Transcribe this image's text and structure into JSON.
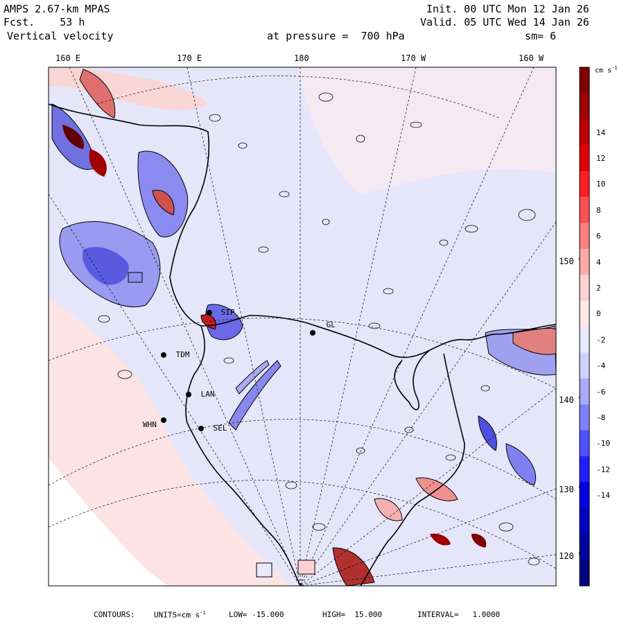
{
  "header": {
    "model": "AMPS 2.67-km MPAS",
    "forecast": "Fcst.    53 h",
    "field": "Vertical velocity",
    "init": "Init. 00 UTC Mon 12 Jan 26",
    "valid": "Valid. 05 UTC Wed 14 Jan 26",
    "pressure": "at pressure =  700 hPa",
    "smoothing": "sm= 6"
  },
  "top_axis_labels": [
    "160 E",
    "170 E",
    "180",
    "170 W",
    "160 W"
  ],
  "right_axis_labels": [
    "150 W",
    "140 W",
    "130 W",
    "120 W"
  ],
  "stations": [
    {
      "label": "TDM"
    },
    {
      "label": "LAN"
    },
    {
      "label": "WHN"
    },
    {
      "label": "SEL"
    },
    {
      "label": "SIP"
    },
    {
      "label": "GL"
    }
  ],
  "colorbar": {
    "units": "cm s",
    "units_exp": "-1",
    "tick_labels": [
      "14",
      "12",
      "10",
      "8",
      "6",
      "4",
      "2",
      "0",
      "-2",
      "-4",
      "-6",
      "-8",
      "-10",
      "-12",
      "-14"
    ],
    "colors": [
      "#800000",
      "#a00000",
      "#c00000",
      "#e00000",
      "#ff2020",
      "#ff5050",
      "#ff8080",
      "#ffaaaa",
      "#ffd0d0",
      "#ffe8e8",
      "#e8e8ff",
      "#d0d0ff",
      "#aaaaff",
      "#8080ff",
      "#5050ff",
      "#2020ff",
      "#0000e0",
      "#0000c0",
      "#0000a0",
      "#000080"
    ]
  },
  "footer": {
    "contours": "CONTOURS:",
    "units": "UNITS=cm s",
    "units_exp": "-1",
    "low": "LOW= -15.000",
    "high": "HIGH=  15.000",
    "interval": "INTERVAL=   1.0000"
  },
  "colors": {
    "weak_positive": "#fce4e4",
    "weak_negative": "#e6e6fa",
    "positive": "#f4a0a0",
    "negative": "#9090f0",
    "strong_positive": "#c01010",
    "strong_negative": "#2020c0"
  }
}
